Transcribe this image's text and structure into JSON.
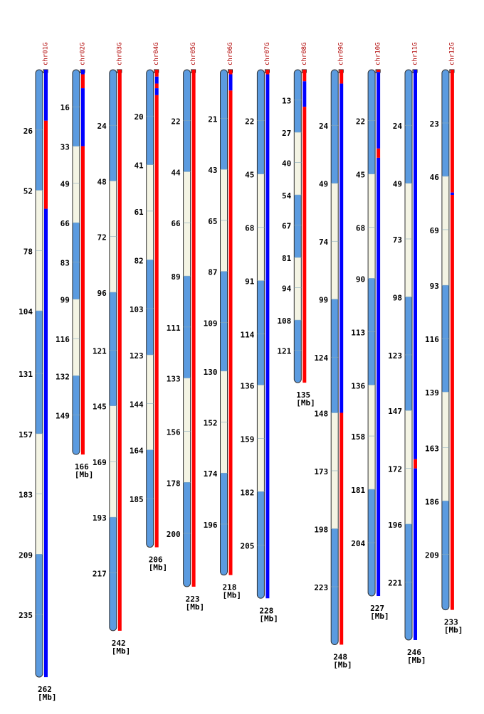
{
  "unit": "[Mb]",
  "band_colors": [
    "#5b9be0",
    "#f4f4e4"
  ],
  "chromosomes": [
    {
      "name": "chr01G",
      "length": 262,
      "ticks": [
        26,
        52,
        78,
        104,
        131,
        157,
        183,
        209,
        235
      ],
      "track": [
        {
          "start": 0,
          "end": 22,
          "color": "#0000ff"
        },
        {
          "start": 22,
          "end": 60,
          "color": "#ff0000"
        },
        {
          "start": 60,
          "end": 262,
          "color": "#0000ff"
        }
      ]
    },
    {
      "name": "chr02G",
      "length": 166,
      "ticks": [
        16,
        33,
        49,
        66,
        83,
        99,
        116,
        132,
        149
      ],
      "track": [
        {
          "start": 0,
          "end": 2,
          "color": "#0000ff"
        },
        {
          "start": 2,
          "end": 8,
          "color": "#ff0000"
        },
        {
          "start": 8,
          "end": 33,
          "color": "#0000ff"
        },
        {
          "start": 33,
          "end": 166,
          "color": "#ff0000"
        }
      ]
    },
    {
      "name": "chr03G",
      "length": 242,
      "ticks": [
        24,
        48,
        72,
        96,
        121,
        145,
        169,
        193,
        217
      ],
      "track": [
        {
          "start": 0,
          "end": 242,
          "color": "#ff0000"
        }
      ]
    },
    {
      "name": "chr04G",
      "length": 206,
      "ticks": [
        20,
        41,
        61,
        82,
        103,
        123,
        144,
        164,
        185
      ],
      "track": [
        {
          "start": 0,
          "end": 3,
          "color": "#ff0000"
        },
        {
          "start": 3,
          "end": 6,
          "color": "#0000ff"
        },
        {
          "start": 6,
          "end": 8,
          "color": "#ff0000"
        },
        {
          "start": 8,
          "end": 11,
          "color": "#0000ff"
        },
        {
          "start": 11,
          "end": 206,
          "color": "#ff0000"
        }
      ]
    },
    {
      "name": "chr05G",
      "length": 223,
      "ticks": [
        22,
        44,
        66,
        89,
        111,
        133,
        156,
        178,
        200
      ],
      "track": [
        {
          "start": 0,
          "end": 223,
          "color": "#ff0000"
        }
      ]
    },
    {
      "name": "chr06G",
      "length": 218,
      "ticks": [
        21,
        43,
        65,
        87,
        109,
        130,
        152,
        174,
        196
      ],
      "track": [
        {
          "start": 0,
          "end": 2,
          "color": "#ff0000"
        },
        {
          "start": 2,
          "end": 9,
          "color": "#0000ff"
        },
        {
          "start": 9,
          "end": 218,
          "color": "#ff0000"
        }
      ]
    },
    {
      "name": "chr07G",
      "length": 228,
      "ticks": [
        22,
        45,
        68,
        91,
        114,
        136,
        159,
        182,
        205
      ],
      "track": [
        {
          "start": 0,
          "end": 2,
          "color": "#ff0000"
        },
        {
          "start": 2,
          "end": 228,
          "color": "#0000ff"
        }
      ]
    },
    {
      "name": "chr08G",
      "length": 135,
      "ticks": [
        13,
        27,
        40,
        54,
        67,
        81,
        94,
        108,
        121
      ],
      "track": [
        {
          "start": 0,
          "end": 5,
          "color": "#ff0000"
        },
        {
          "start": 5,
          "end": 16,
          "color": "#0000ff"
        },
        {
          "start": 16,
          "end": 135,
          "color": "#ff0000"
        }
      ]
    },
    {
      "name": "chr09G",
      "length": 248,
      "ticks": [
        24,
        49,
        74,
        99,
        124,
        148,
        173,
        198,
        223
      ],
      "track": [
        {
          "start": 0,
          "end": 6,
          "color": "#ff0000"
        },
        {
          "start": 6,
          "end": 148,
          "color": "#0000ff"
        },
        {
          "start": 148,
          "end": 248,
          "color": "#ff0000"
        }
      ]
    },
    {
      "name": "chr10G",
      "length": 227,
      "ticks": [
        22,
        45,
        68,
        90,
        113,
        136,
        158,
        181,
        204
      ],
      "track": [
        {
          "start": 0,
          "end": 1,
          "color": "#ff0000"
        },
        {
          "start": 1,
          "end": 34,
          "color": "#0000ff"
        },
        {
          "start": 34,
          "end": 38,
          "color": "#ff0000"
        },
        {
          "start": 38,
          "end": 227,
          "color": "#0000ff"
        }
      ]
    },
    {
      "name": "chr11G",
      "length": 246,
      "ticks": [
        24,
        49,
        73,
        98,
        123,
        147,
        172,
        196,
        221
      ],
      "track": [
        {
          "start": 0,
          "end": 168,
          "color": "#0000ff"
        },
        {
          "start": 168,
          "end": 172,
          "color": "#ff0000"
        },
        {
          "start": 172,
          "end": 246,
          "color": "#0000ff"
        }
      ]
    },
    {
      "name": "chr12G",
      "length": 233,
      "ticks": [
        23,
        46,
        69,
        93,
        116,
        139,
        163,
        186,
        209
      ],
      "track": [
        {
          "start": 0,
          "end": 53,
          "color": "#ff0000"
        },
        {
          "start": 53,
          "end": 54,
          "color": "#0000ff"
        },
        {
          "start": 54,
          "end": 233,
          "color": "#ff0000"
        }
      ]
    }
  ]
}
